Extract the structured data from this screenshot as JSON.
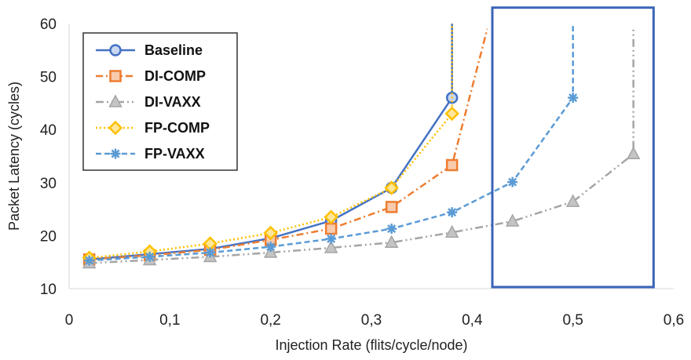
{
  "chart_data": {
    "type": "line",
    "xlabel": "Injection Rate (flits/cycle/node)",
    "ylabel": "Packet Latency (cycles)",
    "xlim": [
      0,
      0.6
    ],
    "ylim": [
      10,
      60
    ],
    "x_ticks": [
      "0",
      "0,1",
      "0,2",
      "0,3",
      "0,4",
      "0,5",
      "0,6"
    ],
    "x_tick_values": [
      0,
      0.1,
      0.2,
      0.3,
      0.4,
      0.5,
      0.6
    ],
    "y_ticks": [
      "10",
      "20",
      "30",
      "40",
      "50",
      "60"
    ],
    "y_tick_values": [
      10,
      20,
      30,
      40,
      50,
      60
    ],
    "grid": false,
    "legend_position": "top-left",
    "highlight_box": {
      "x_range": [
        0.42,
        0.58
      ],
      "y_range": [
        10.3,
        63
      ],
      "color": "#3a64b8"
    },
    "series": [
      {
        "name": "Baseline",
        "color": "#4472c4",
        "marker": "circle",
        "dash": "solid",
        "x": [
          0.02,
          0.08,
          0.14,
          0.2,
          0.26,
          0.32,
          0.38
        ],
        "y": [
          15.5,
          16.5,
          17.5,
          19.5,
          22.8,
          29,
          46
        ],
        "saturation": {
          "x": 0.38,
          "y_to": 60
        }
      },
      {
        "name": "DI-COMP",
        "color": "#ed7d31",
        "marker": "square",
        "dash": "dashdot",
        "x": [
          0.02,
          0.08,
          0.14,
          0.2,
          0.26,
          0.32,
          0.38
        ],
        "y": [
          15.5,
          16.3,
          17.3,
          19.2,
          21.3,
          25.4,
          33.3
        ],
        "saturation": {
          "x": 0.415,
          "y_to": 59
        }
      },
      {
        "name": "DI-VAXX",
        "color": "#a5a5a5",
        "marker": "triangle",
        "dash": "dashdotdot",
        "x": [
          0.02,
          0.08,
          0.14,
          0.2,
          0.26,
          0.32,
          0.38,
          0.44,
          0.5,
          0.56
        ],
        "y": [
          14.8,
          15.4,
          16,
          16.8,
          17.7,
          18.7,
          20.6,
          22.7,
          26.4,
          35.4
        ],
        "saturation": {
          "x": 0.56,
          "y_to": 59
        }
      },
      {
        "name": "FP-COMP",
        "color": "#ffc000",
        "marker": "diamond",
        "dash": "dotted",
        "x": [
          0.02,
          0.08,
          0.14,
          0.2,
          0.26,
          0.32,
          0.38
        ],
        "y": [
          15.8,
          17,
          18.5,
          20.5,
          23.5,
          29,
          43
        ],
        "saturation": {
          "x": 0.38,
          "y_to": 60
        }
      },
      {
        "name": "FP-VAXX",
        "color": "#5b9bd5",
        "marker": "star",
        "dash": "dashed",
        "x": [
          0.02,
          0.08,
          0.14,
          0.2,
          0.26,
          0.32,
          0.38,
          0.44,
          0.5
        ],
        "y": [
          15.3,
          16,
          16.8,
          17.9,
          19.4,
          21.3,
          24.4,
          30.1,
          46
        ],
        "saturation": {
          "x": 0.5,
          "y_to": 60
        }
      }
    ]
  }
}
